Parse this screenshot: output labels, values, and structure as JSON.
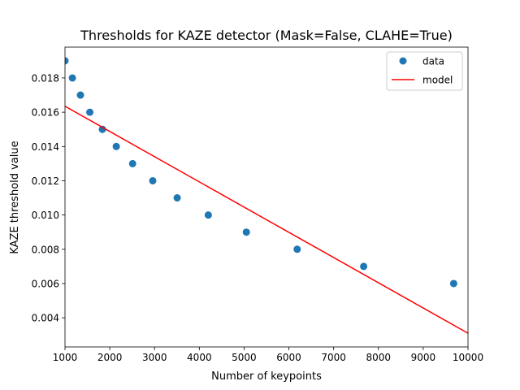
{
  "chart_data": {
    "type": "scatter",
    "title": "Thresholds for KAZE detector (Mask=False, CLAHE=True)",
    "xlabel": "Number of keypoints",
    "ylabel": "KAZE threshold value",
    "xlim": [
      1000,
      10000
    ],
    "ylim": [
      0.0023,
      0.0198
    ],
    "xticks": [
      1000,
      2000,
      3000,
      4000,
      5000,
      6000,
      7000,
      8000,
      9000,
      10000
    ],
    "xtick_labels": [
      "1000",
      "2000",
      "3000",
      "4000",
      "5000",
      "6000",
      "7000",
      "8000",
      "9000",
      "10000"
    ],
    "yticks": [
      0.004,
      0.006,
      0.008,
      0.01,
      0.012,
      0.014,
      0.016,
      0.018
    ],
    "ytick_labels": [
      "0.004",
      "0.006",
      "0.008",
      "0.010",
      "0.012",
      "0.014",
      "0.016",
      "0.018"
    ],
    "grid": false,
    "legend_position": "top-right",
    "series": [
      {
        "name": "data",
        "kind": "scatter",
        "color": "#1f77b4",
        "x": [
          1000,
          1165,
          1345,
          1555,
          1835,
          2145,
          2510,
          2960,
          3505,
          4200,
          5050,
          6185,
          7670,
          9680
        ],
        "y": [
          0.019,
          0.018,
          0.017,
          0.016,
          0.015,
          0.014,
          0.013,
          0.012,
          0.011,
          0.01,
          0.009,
          0.008,
          0.007,
          0.006
        ]
      },
      {
        "name": "model",
        "kind": "line",
        "color": "#ff0000",
        "x": [
          1000,
          10000
        ],
        "y": [
          0.01635,
          0.0031
        ]
      }
    ]
  }
}
